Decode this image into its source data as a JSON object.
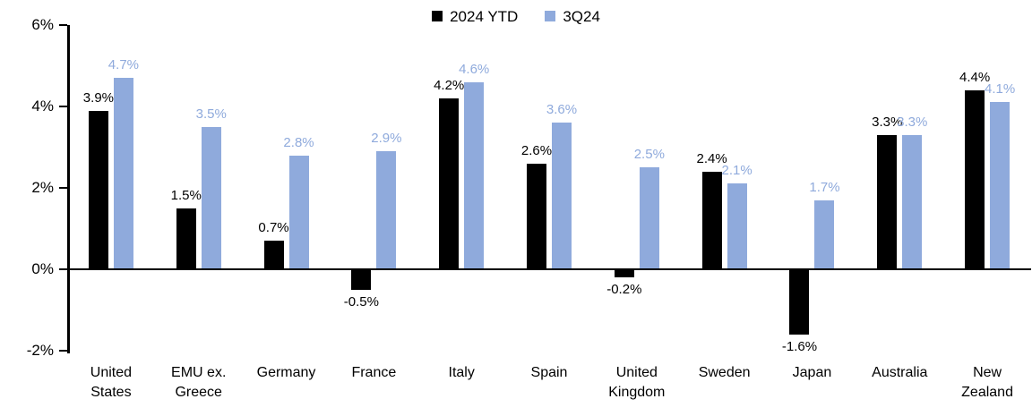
{
  "chart_data": {
    "type": "bar",
    "title": "",
    "xlabel": "",
    "ylabel": "",
    "value_suffix": "%",
    "categories": [
      "United States",
      "EMU ex. Greece",
      "Germany",
      "France",
      "Italy",
      "Spain",
      "United Kingdom",
      "Sweden",
      "Japan",
      "Australia",
      "New Zealand"
    ],
    "series": [
      {
        "name": "2024 YTD",
        "color": "#000000",
        "label_color": "#000000",
        "values": [
          3.9,
          1.5,
          0.7,
          -0.5,
          4.2,
          2.6,
          -0.2,
          2.4,
          -1.6,
          3.3,
          4.4
        ]
      },
      {
        "name": "3Q24",
        "color": "#8FAADC",
        "label_color": "#8FAADC",
        "values": [
          4.7,
          3.5,
          2.8,
          2.9,
          4.6,
          3.6,
          2.5,
          2.1,
          1.7,
          3.3,
          4.1
        ]
      }
    ],
    "ylim": [
      -2,
      6
    ],
    "ytick_labels": [
      "6%",
      "4%",
      "2%",
      "0%",
      "-2%"
    ],
    "ytick_values": [
      6,
      4,
      2,
      0,
      -2
    ],
    "grid": false,
    "legend_position": "top-center",
    "data_labels": true,
    "axis_color": "#000000"
  }
}
